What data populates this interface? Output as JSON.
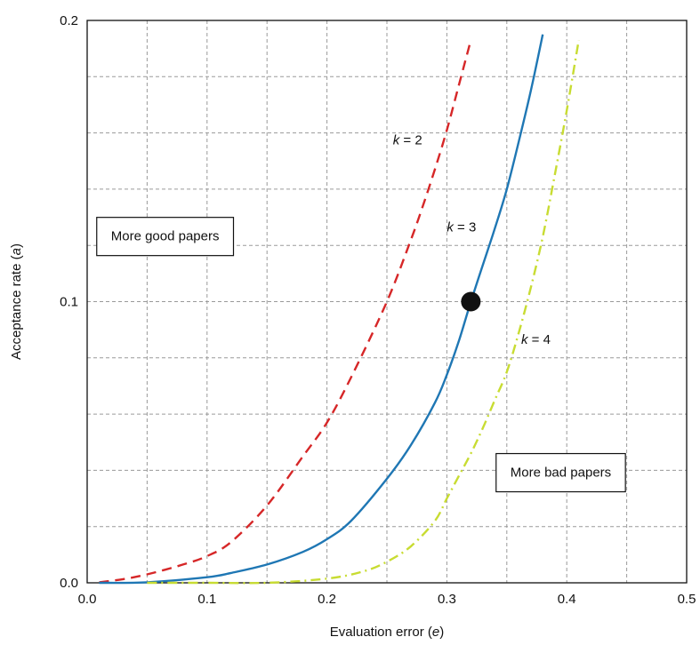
{
  "chart_data": {
    "type": "line",
    "xlabel": "Evaluation error",
    "xlabel_var": "e",
    "ylabel": "Acceptance rate",
    "ylabel_var": "a",
    "xlim": [
      0,
      0.5
    ],
    "ylim": [
      0,
      0.2
    ],
    "x_ticks": [
      0.0,
      0.1,
      0.2,
      0.3,
      0.4,
      0.5
    ],
    "x_tick_labels": [
      "0.0",
      "0.1",
      "0.2",
      "0.3",
      "0.4",
      "0.5"
    ],
    "y_ticks": [
      0.0,
      0.1,
      0.2
    ],
    "y_tick_labels": [
      "0.0",
      "0.1",
      "0.2"
    ],
    "grid": true,
    "x_grid_step": 0.05,
    "y_grid_step": 0.02,
    "series": [
      {
        "name": "k = 2",
        "k": "2",
        "color": "#d62728",
        "style": "dashed",
        "x": [
          0.01,
          0.03,
          0.05,
          0.08,
          0.1,
          0.12,
          0.15,
          0.18,
          0.2,
          0.22,
          0.25,
          0.27,
          0.28,
          0.29,
          0.3,
          0.31,
          0.32
        ],
        "values": [
          0.0002,
          0.0013,
          0.003,
          0.0065,
          0.0095,
          0.0145,
          0.0275,
          0.045,
          0.057,
          0.073,
          0.1,
          0.122,
          0.134,
          0.147,
          0.161,
          0.177,
          0.193
        ]
      },
      {
        "name": "k = 3",
        "k": "3",
        "color": "#1f77b4",
        "style": "solid",
        "x": [
          0.01,
          0.05,
          0.1,
          0.12,
          0.15,
          0.18,
          0.2,
          0.22,
          0.25,
          0.27,
          0.29,
          0.3,
          0.31,
          0.32,
          0.33,
          0.34,
          0.35,
          0.36,
          0.37,
          0.38
        ],
        "values": [
          0.0,
          0.0002,
          0.002,
          0.0035,
          0.0065,
          0.011,
          0.0155,
          0.022,
          0.037,
          0.049,
          0.064,
          0.074,
          0.086,
          0.1,
          0.113,
          0.126,
          0.14,
          0.157,
          0.175,
          0.195
        ]
      },
      {
        "name": "k = 4",
        "k": "4",
        "color": "#c8dc32",
        "style": "dash-dot",
        "x": [
          0.05,
          0.1,
          0.15,
          0.2,
          0.23,
          0.25,
          0.27,
          0.29,
          0.3,
          0.31,
          0.32,
          0.33,
          0.34,
          0.35,
          0.36,
          0.37,
          0.38,
          0.39,
          0.4,
          0.41
        ],
        "values": [
          0.0,
          0.0,
          0.0,
          0.0015,
          0.004,
          0.0075,
          0.013,
          0.022,
          0.03,
          0.038,
          0.046,
          0.055,
          0.065,
          0.075,
          0.089,
          0.105,
          0.123,
          0.145,
          0.168,
          0.193
        ]
      }
    ],
    "marker": {
      "x": 0.32,
      "y": 0.1,
      "color": "#111111"
    },
    "annotations": [
      {
        "text": "More good papers",
        "x": 0.065,
        "y": 0.123,
        "boxed": true
      },
      {
        "text": "More bad papers",
        "x": 0.395,
        "y": 0.039,
        "boxed": true
      }
    ],
    "curve_labels": [
      {
        "k": "2",
        "x": 0.255,
        "y": 0.156
      },
      {
        "k": "3",
        "x": 0.3,
        "y": 0.125
      },
      {
        "k": "4",
        "x": 0.362,
        "y": 0.085
      }
    ]
  }
}
